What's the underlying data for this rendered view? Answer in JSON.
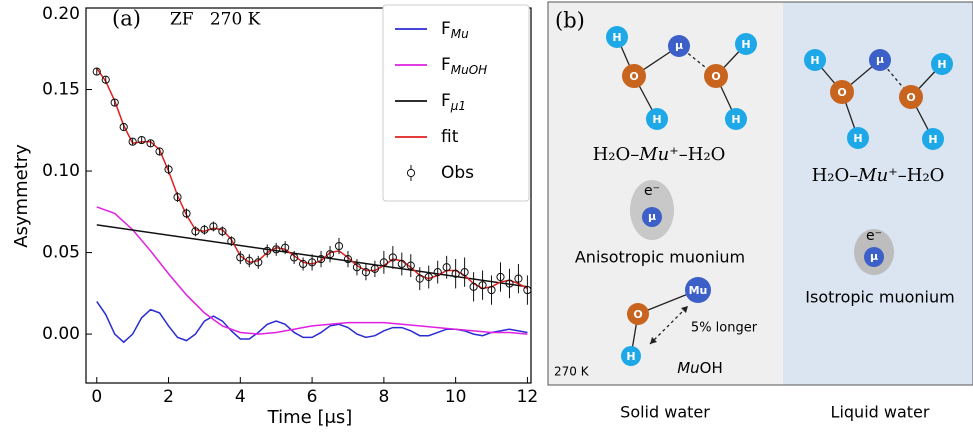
{
  "chart_data": {
    "type": "line",
    "panel_label": "(a)",
    "annotation": "ZF   270 K",
    "x_label": "Time [μs]",
    "y_label": "Asymmetry",
    "xlim": [
      -0.3,
      12.1
    ],
    "ylim": [
      -0.03,
      0.2
    ],
    "xticks": [
      0,
      2,
      4,
      6,
      8,
      10,
      12
    ],
    "yticks": [
      {
        "value": 0,
        "label": "0.00"
      },
      {
        "value": 0.05,
        "label": "0.05"
      },
      {
        "value": 0.1,
        "label": "0.10"
      },
      {
        "value": 0.15,
        "label": "0.15"
      },
      {
        "value": 0.2,
        "label": "0.20"
      }
    ],
    "x": [
      0,
      0.25,
      0.5,
      0.75,
      1,
      1.25,
      1.5,
      1.75,
      2,
      2.25,
      2.5,
      2.75,
      3,
      3.25,
      3.5,
      3.75,
      4,
      4.25,
      4.5,
      4.75,
      5,
      5.25,
      5.5,
      5.75,
      6,
      6.25,
      6.5,
      6.75,
      7,
      7.25,
      7.5,
      7.75,
      8,
      8.25,
      8.5,
      8.75,
      9,
      9.25,
      9.5,
      9.75,
      10,
      10.25,
      10.5,
      10.75,
      11,
      11.25,
      11.5,
      11.75,
      12
    ],
    "series": [
      {
        "name": "F",
        "name_sub": "Mu",
        "color": "#2b2bd6",
        "values": [
          0.02,
          0.012,
          0.0,
          -0.005,
          0.0,
          0.01,
          0.015,
          0.013,
          0.005,
          -0.002,
          -0.004,
          0.0,
          0.008,
          0.011,
          0.008,
          0.002,
          -0.003,
          -0.003,
          0.001,
          0.006,
          0.008,
          0.006,
          0.001,
          -0.002,
          -0.002,
          0.001,
          0.005,
          0.006,
          0.004,
          0.0,
          -0.002,
          -0.001,
          0.002,
          0.004,
          0.004,
          0.002,
          -0.001,
          -0.001,
          0.001,
          0.003,
          0.003,
          0.002,
          0.0,
          -0.001,
          0.001,
          0.002,
          0.003,
          0.002,
          0.001
        ]
      },
      {
        "name": "F",
        "name_sub": "MuOH",
        "color": "#e020e0",
        "x": [
          0,
          0.5,
          1,
          1.5,
          2,
          2.5,
          3,
          3.5,
          4,
          4.5,
          5,
          5.5,
          6,
          6.5,
          7,
          7.5,
          8,
          8.5,
          9,
          9.5,
          10,
          10.5,
          11,
          11.5,
          12
        ],
        "values": [
          0.078,
          0.074,
          0.064,
          0.051,
          0.037,
          0.024,
          0.013,
          0.005,
          0.001,
          0.0,
          0.001,
          0.003,
          0.005,
          0.006,
          0.007,
          0.007,
          0.007,
          0.006,
          0.005,
          0.004,
          0.003,
          0.002,
          0.001,
          0.001,
          0.0
        ]
      },
      {
        "name": "F",
        "name_sub": "μ1",
        "color": "#111111",
        "x": [
          0,
          12
        ],
        "values": [
          0.067,
          0.029
        ]
      },
      {
        "name": "fit",
        "color": "#e0201e",
        "values": [
          0.163,
          0.155,
          0.143,
          0.128,
          0.117,
          0.118,
          0.118,
          0.113,
          0.1,
          0.085,
          0.073,
          0.064,
          0.063,
          0.065,
          0.064,
          0.058,
          0.048,
          0.044,
          0.045,
          0.05,
          0.053,
          0.052,
          0.048,
          0.044,
          0.043,
          0.045,
          0.05,
          0.051,
          0.047,
          0.042,
          0.039,
          0.039,
          0.042,
          0.046,
          0.045,
          0.041,
          0.036,
          0.034,
          0.036,
          0.039,
          0.039,
          0.036,
          0.031,
          0.028,
          0.029,
          0.032,
          0.033,
          0.031,
          0.028
        ]
      },
      {
        "name": "Obs",
        "color": "#111111",
        "marker": "o",
        "values": [
          0.161,
          0.156,
          0.142,
          0.127,
          0.118,
          0.119,
          0.117,
          0.112,
          0.101,
          0.084,
          0.074,
          0.063,
          0.064,
          0.066,
          0.063,
          0.057,
          0.047,
          0.045,
          0.044,
          0.051,
          0.052,
          0.053,
          0.047,
          0.043,
          0.044,
          0.046,
          0.049,
          0.054,
          0.046,
          0.041,
          0.038,
          0.04,
          0.044,
          0.047,
          0.043,
          0.042,
          0.034,
          0.035,
          0.038,
          0.041,
          0.037,
          0.038,
          0.029,
          0.03,
          0.027,
          0.035,
          0.031,
          0.034,
          0.027
        ],
        "errors": [
          0.002,
          0.002,
          0.002,
          0.002,
          0.002,
          0.002,
          0.002,
          0.002,
          0.003,
          0.003,
          0.003,
          0.003,
          0.003,
          0.003,
          0.003,
          0.003,
          0.004,
          0.004,
          0.004,
          0.004,
          0.004,
          0.004,
          0.004,
          0.004,
          0.005,
          0.005,
          0.005,
          0.005,
          0.005,
          0.005,
          0.005,
          0.005,
          0.007,
          0.007,
          0.007,
          0.007,
          0.007,
          0.007,
          0.007,
          0.007,
          0.009,
          0.009,
          0.009,
          0.009,
          0.009,
          0.009,
          0.009,
          0.009,
          0.009
        ]
      }
    ]
  },
  "diagram": {
    "panel_label": "(b)",
    "solid": {
      "atoms": [
        "H",
        "O",
        "H",
        "μ",
        "O",
        "H",
        "H"
      ],
      "formula": [
        "H₂O–",
        "Mu",
        "⁺–H₂O"
      ],
      "electron": "e⁻",
      "muon": "μ",
      "name": "Anisotropic muonium",
      "muoh_atoms": [
        "O",
        "Mu",
        "H"
      ],
      "bond_note": "5% longer",
      "temperature": "270 K",
      "muoh": [
        "Mu",
        "OH"
      ],
      "footer": "Solid water"
    },
    "liquid": {
      "atoms": [
        "H",
        "O",
        "H",
        "μ",
        "O",
        "H",
        "H"
      ],
      "formula": [
        "H₂O–",
        "Mu",
        "⁺–H₂O"
      ],
      "electron": "e⁻",
      "muon": "μ",
      "name": "Isotropic muonium",
      "footer": "Liquid water"
    }
  }
}
